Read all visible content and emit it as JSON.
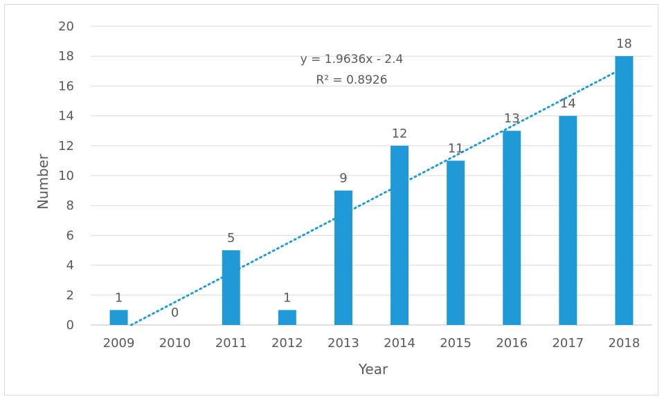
{
  "chart_data": {
    "type": "bar",
    "categories": [
      "2009",
      "2010",
      "2011",
      "2012",
      "2013",
      "2014",
      "2015",
      "2016",
      "2017",
      "2018"
    ],
    "values": [
      1,
      0,
      5,
      1,
      9,
      12,
      11,
      13,
      14,
      18
    ],
    "data_labels": [
      "1",
      "0",
      "5",
      "1",
      "9",
      "12",
      "11",
      "13",
      "14",
      "18"
    ],
    "xlabel": "Year",
    "ylabel": "Number",
    "ylim": [
      0,
      20
    ],
    "yticks": [
      0,
      2,
      4,
      6,
      8,
      10,
      12,
      14,
      16,
      18,
      20
    ],
    "grid": true,
    "legend": "none",
    "bar_color": "#1f9ad6",
    "trendline": {
      "type": "linear",
      "slope": 1.9636,
      "intercept": -2.4,
      "equation": "y = 1.9636x - 2.4",
      "r_squared": "R² = 0.8926",
      "color": "#1f9ad6"
    }
  }
}
